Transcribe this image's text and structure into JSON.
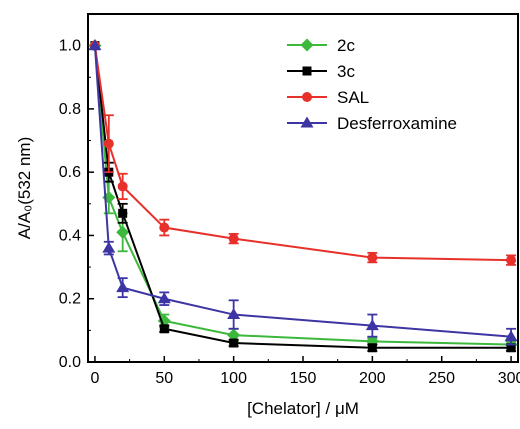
{
  "chart_data": {
    "type": "line",
    "title": "",
    "xlabel": "[Chelator] / μM",
    "ylabel": "A/A₀(532 nm)",
    "xlim": [
      -5,
      305
    ],
    "ylim": [
      0,
      1.1
    ],
    "xticks": [
      "0",
      "50",
      "100",
      "150",
      "200",
      "250",
      "300"
    ],
    "yticks": [
      "0.0",
      "0.2",
      "0.4",
      "0.6",
      "0.8",
      "1.0"
    ],
    "legend_position": "top-right",
    "grid": false,
    "x": [
      0,
      10,
      20,
      50,
      100,
      200,
      300
    ],
    "series": [
      {
        "name": "2c",
        "color": "#3cb83c",
        "marker": "diamond",
        "values": [
          1.0,
          0.52,
          0.41,
          0.13,
          0.085,
          0.065,
          0.055
        ],
        "errors": [
          0,
          0.05,
          0.06,
          0.02,
          0.02,
          0.01,
          0.01
        ]
      },
      {
        "name": "3c",
        "color": "#000000",
        "marker": "square",
        "values": [
          1.0,
          0.6,
          0.47,
          0.105,
          0.06,
          0.045,
          0.045
        ],
        "errors": [
          0,
          0.03,
          0.03,
          0.01,
          0.01,
          0.01,
          0.01
        ]
      },
      {
        "name": "SAL",
        "color": "#e8302a",
        "marker": "circle",
        "values": [
          1.0,
          0.69,
          0.555,
          0.425,
          0.39,
          0.33,
          0.322
        ],
        "errors": [
          0,
          0.09,
          0.04,
          0.025,
          0.015,
          0.015,
          0.015
        ]
      },
      {
        "name": "Desferroxamine",
        "color": "#3d35a3",
        "marker": "triangle",
        "values": [
          1.0,
          0.36,
          0.235,
          0.2,
          0.15,
          0.115,
          0.08
        ],
        "errors": [
          0,
          0.02,
          0.03,
          0.02,
          0.045,
          0.035,
          0.025
        ]
      }
    ]
  }
}
